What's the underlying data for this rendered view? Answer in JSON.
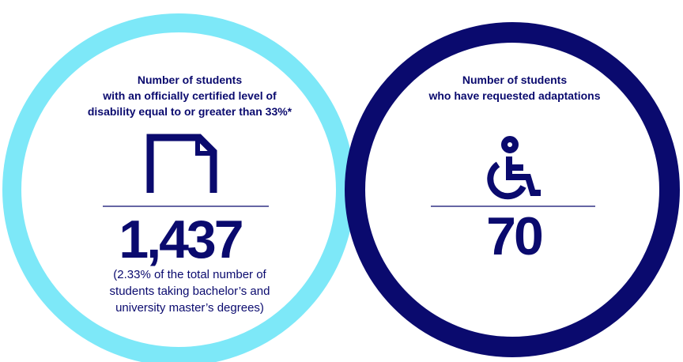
{
  "panels": [
    {
      "title_lines": [
        "Number of students",
        "with an officially certified level of",
        "disability equal to or greater than 33%*"
      ],
      "value": "1,437",
      "note_lines": [
        "(2.33% of the total number of",
        "students taking bachelor’s and",
        "university master’s degrees)"
      ]
    },
    {
      "title_lines": [
        "Number of students",
        "who have requested adaptations"
      ],
      "value": "70"
    }
  ]
}
